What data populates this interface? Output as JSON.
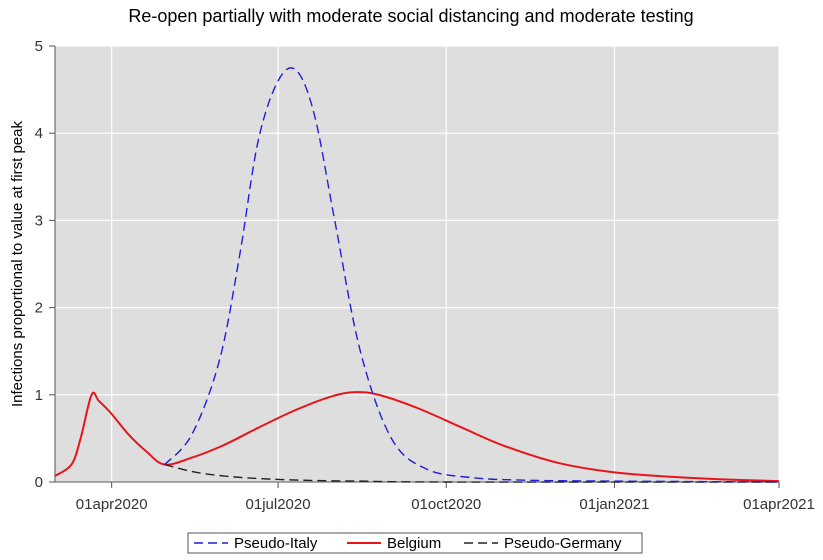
{
  "chart_data": {
    "type": "line",
    "title": "Re-open partially with moderate social distancing and moderate testing",
    "xlabel": "",
    "ylabel": "Infections proportional to value at first peak",
    "x_type": "date",
    "xlim": [
      "2020-03-01",
      "2021-04-01"
    ],
    "ylim": [
      0,
      5
    ],
    "y_ticks": [
      0,
      1,
      2,
      3,
      4,
      5
    ],
    "x_ticks": [
      {
        "date": "2020-04-01",
        "label": "01apr2020"
      },
      {
        "date": "2020-07-01",
        "label": "01jul2020"
      },
      {
        "date": "2020-10-01",
        "label": "01oct2020"
      },
      {
        "date": "2021-01-01",
        "label": "01jan2021"
      },
      {
        "date": "2021-04-01",
        "label": "01apr2021"
      }
    ],
    "grid": true,
    "legend_position": "bottom",
    "background_color": "#dedede",
    "series": [
      {
        "name": "Pseudo-Italy",
        "color": "#1f1fd8",
        "dash": "dashed",
        "points": [
          [
            "2020-04-30",
            0.2
          ],
          [
            "2020-05-15",
            0.55
          ],
          [
            "2020-05-30",
            1.4
          ],
          [
            "2020-06-10",
            2.6
          ],
          [
            "2020-06-20",
            3.9
          ],
          [
            "2020-07-01",
            4.6
          ],
          [
            "2020-07-11",
            4.72
          ],
          [
            "2020-07-21",
            4.2
          ],
          [
            "2020-08-01",
            3.0
          ],
          [
            "2020-08-15",
            1.5
          ],
          [
            "2020-09-01",
            0.5
          ],
          [
            "2020-09-20",
            0.15
          ],
          [
            "2020-10-15",
            0.05
          ],
          [
            "2020-11-15",
            0.02
          ],
          [
            "2021-01-01",
            0.01
          ],
          [
            "2021-04-01",
            0.0
          ]
        ]
      },
      {
        "name": "Belgium",
        "color": "#e8141b",
        "dash": "solid",
        "points": [
          [
            "2020-03-01",
            0.07
          ],
          [
            "2020-03-10",
            0.2
          ],
          [
            "2020-03-15",
            0.5
          ],
          [
            "2020-03-21",
            1.0
          ],
          [
            "2020-03-25",
            0.93
          ],
          [
            "2020-04-01",
            0.78
          ],
          [
            "2020-04-10",
            0.55
          ],
          [
            "2020-04-20",
            0.35
          ],
          [
            "2020-04-30",
            0.2
          ],
          [
            "2020-05-15",
            0.28
          ],
          [
            "2020-06-01",
            0.42
          ],
          [
            "2020-06-20",
            0.62
          ],
          [
            "2020-07-10",
            0.82
          ],
          [
            "2020-07-30",
            0.98
          ],
          [
            "2020-08-12",
            1.03
          ],
          [
            "2020-08-25",
            1.0
          ],
          [
            "2020-09-15",
            0.85
          ],
          [
            "2020-10-10",
            0.62
          ],
          [
            "2020-11-01",
            0.42
          ],
          [
            "2020-12-01",
            0.22
          ],
          [
            "2021-01-01",
            0.11
          ],
          [
            "2021-02-01",
            0.06
          ],
          [
            "2021-03-01",
            0.03
          ],
          [
            "2021-04-01",
            0.01
          ]
        ]
      },
      {
        "name": "Pseudo-Germany",
        "color": "#222222",
        "dash": "dashed",
        "points": [
          [
            "2020-04-30",
            0.2
          ],
          [
            "2020-05-15",
            0.12
          ],
          [
            "2020-06-01",
            0.07
          ],
          [
            "2020-06-20",
            0.04
          ],
          [
            "2020-07-15",
            0.02
          ],
          [
            "2020-08-15",
            0.01
          ],
          [
            "2020-10-01",
            0.0
          ],
          [
            "2021-04-01",
            0.0
          ]
        ]
      }
    ]
  }
}
